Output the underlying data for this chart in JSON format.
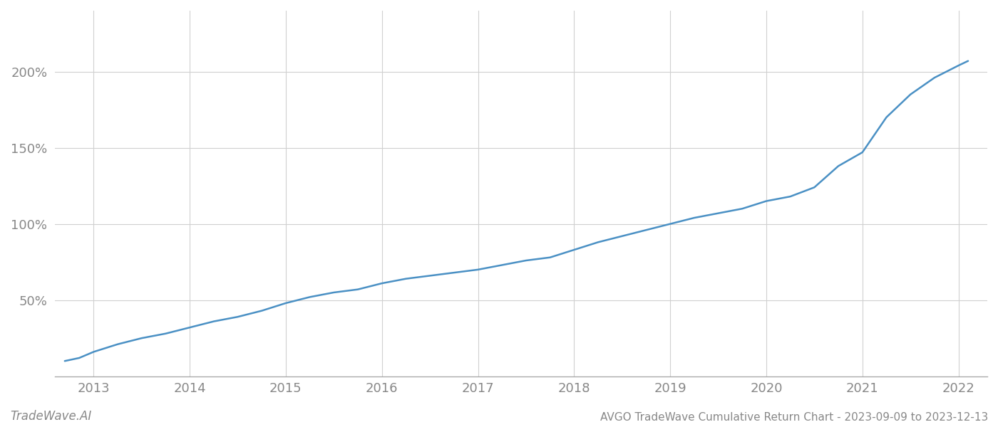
{
  "title": "AVGO TradeWave Cumulative Return Chart - 2023-09-09 to 2023-12-13",
  "watermark": "TradeWave.AI",
  "line_color": "#4a90c4",
  "background_color": "#ffffff",
  "grid_color": "#d0d0d0",
  "x_years": [
    2013,
    2014,
    2015,
    2016,
    2017,
    2018,
    2019,
    2020,
    2021,
    2022
  ],
  "x_data": [
    2012.7,
    2012.85,
    2013.0,
    2013.25,
    2013.5,
    2013.75,
    2014.0,
    2014.25,
    2014.5,
    2014.75,
    2015.0,
    2015.25,
    2015.5,
    2015.75,
    2016.0,
    2016.25,
    2016.5,
    2016.75,
    2017.0,
    2017.25,
    2017.5,
    2017.75,
    2018.0,
    2018.25,
    2018.5,
    2018.75,
    2019.0,
    2019.25,
    2019.5,
    2019.75,
    2020.0,
    2020.25,
    2020.5,
    2020.75,
    2021.0,
    2021.25,
    2021.5,
    2021.75,
    2022.0,
    2022.1
  ],
  "y_data": [
    10,
    12,
    16,
    21,
    25,
    28,
    32,
    36,
    39,
    43,
    48,
    52,
    55,
    57,
    61,
    64,
    66,
    68,
    70,
    73,
    76,
    78,
    83,
    88,
    92,
    96,
    100,
    104,
    107,
    110,
    115,
    118,
    124,
    138,
    147,
    170,
    185,
    196,
    204,
    207
  ],
  "yticks": [
    50,
    100,
    150,
    200
  ],
  "ylim": [
    0,
    240
  ],
  "xlim": [
    2012.6,
    2022.3
  ],
  "axis_label_color": "#888888",
  "tick_label_color": "#888888",
  "spine_color": "#aaaaaa",
  "title_fontsize": 11,
  "watermark_fontsize": 12,
  "tick_fontsize": 13,
  "line_width": 1.8
}
